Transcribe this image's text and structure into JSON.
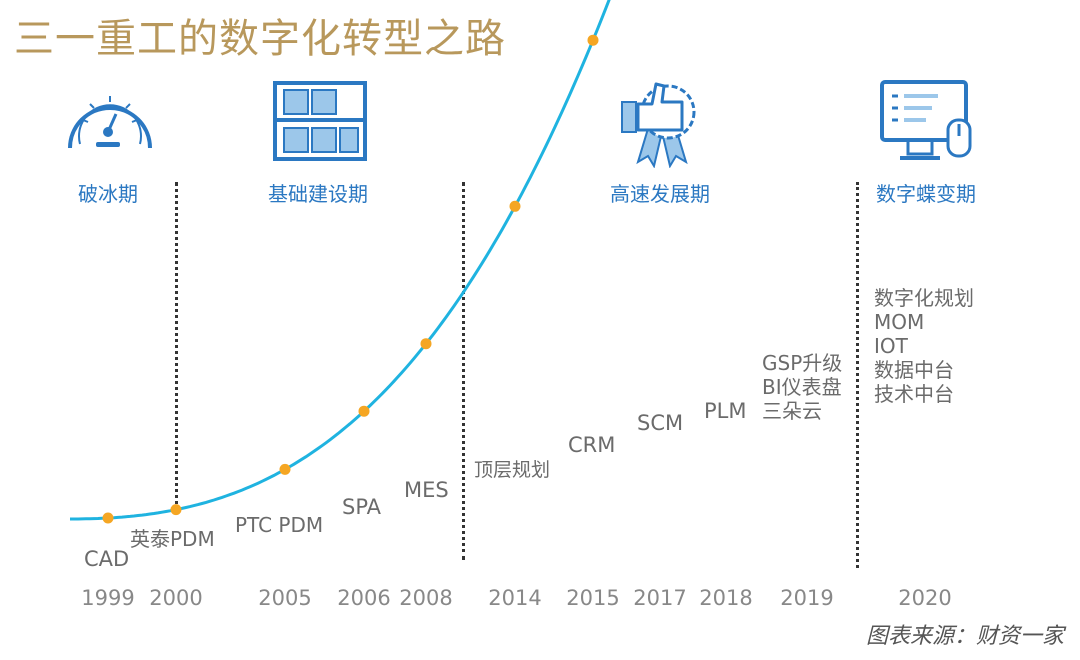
{
  "title": "三一重工的数字化转型之路",
  "source": "图表来源：财资一家",
  "colors": {
    "title": "#b8985c",
    "phase": "#2b78c2",
    "curve": "#1fb3e0",
    "marker": "#f5a623"
  },
  "phases": [
    {
      "label": "破冰期",
      "icon": "speedometer-icon"
    },
    {
      "label": "基础建设期",
      "icon": "warehouse-shelf-icon"
    },
    {
      "label": "高速发展期",
      "icon": "thumbs-up-badge-icon"
    },
    {
      "label": "数字蝶变期",
      "icon": "computer-monitor-icon"
    }
  ],
  "years": [
    "1999",
    "2000",
    "2005",
    "2006",
    "2008",
    "2014",
    "2015",
    "2017",
    "2018",
    "2019",
    "2020"
  ],
  "milestones": [
    {
      "year": "1999",
      "lines": [
        "CAD"
      ]
    },
    {
      "year": "2000",
      "lines": [
        "英泰PDM"
      ]
    },
    {
      "year": "2005",
      "lines": [
        "PTC PDM"
      ]
    },
    {
      "year": "2006",
      "lines": [
        "SPA"
      ]
    },
    {
      "year": "2008",
      "lines": [
        "MES"
      ]
    },
    {
      "year": "2014",
      "lines": [
        "顶层规划"
      ]
    },
    {
      "year": "2015",
      "lines": [
        "CRM"
      ]
    },
    {
      "year": "2017",
      "lines": [
        "SCM"
      ]
    },
    {
      "year": "2018",
      "lines": [
        "PLM"
      ]
    },
    {
      "year": "2019",
      "lines": [
        "GSP升级",
        "BI仪表盘",
        "三朵云"
      ]
    },
    {
      "year": "2020",
      "lines": [
        "数字化规划",
        "MOM",
        "IOT",
        "数据中台",
        "技术中台"
      ]
    }
  ]
}
